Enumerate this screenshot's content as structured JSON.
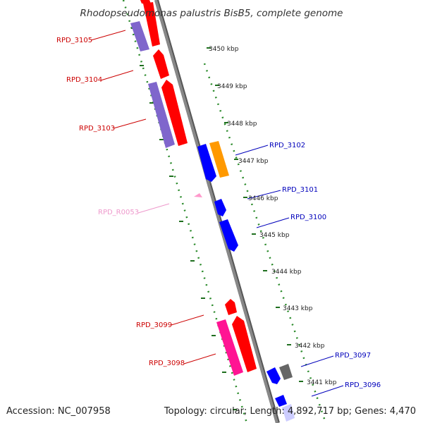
{
  "title": "Rhodopseudomonas palustris BisB5, complete genome",
  "footer": {
    "accession": "Accession: NC_007958",
    "topology": "Topology: circular; Length: 4,892,717 bp; Genes: 4,470"
  },
  "colors": {
    "backbone": "#888888",
    "tick_dots": "#2a8a2a",
    "tick_major": "#1f6f1f",
    "label_red": "#cc0000",
    "label_blue": "#0000bb",
    "label_pink": "#ee99cc",
    "gene_red": "#ff0000",
    "gene_purple": "#7f66cc",
    "gene_blue": "#0000ff",
    "gene_orange": "#ff9900",
    "gene_magenta": "#ff1493",
    "gene_gray": "#666666",
    "gene_lavender": "#ccccff",
    "rna_pink": "#ff99cc"
  },
  "scale_labels": [
    "3450 kbp",
    "3449 kbp",
    "3448 kbp",
    "3447 kbp",
    "3446 kbp",
    "3445 kbp",
    "3444 kbp",
    "3443 kbp",
    "3442 kbp",
    "3441 kbp"
  ],
  "gene_labels": [
    {
      "id": "RPD_3105",
      "color": "label_red"
    },
    {
      "id": "RPD_3104",
      "color": "label_red"
    },
    {
      "id": "RPD_3103",
      "color": "label_red"
    },
    {
      "id": "RPD_R0053",
      "color": "label_pink"
    },
    {
      "id": "RPD_3099",
      "color": "label_red"
    },
    {
      "id": "RPD_3098",
      "color": "label_red"
    },
    {
      "id": "RPD_3102",
      "color": "label_blue"
    },
    {
      "id": "RPD_3101",
      "color": "label_blue"
    },
    {
      "id": "RPD_3100",
      "color": "label_blue"
    },
    {
      "id": "RPD_3097",
      "color": "label_blue"
    },
    {
      "id": "RPD_3096",
      "color": "label_blue"
    }
  ],
  "features": [
    {
      "name": "gene-red-top",
      "color": "gene_red"
    },
    {
      "name": "gene-purple-3105",
      "color": "gene_purple"
    },
    {
      "name": "gene-red-3105",
      "color": "gene_red"
    },
    {
      "name": "gene-red-3104",
      "color": "gene_red"
    },
    {
      "name": "gene-purple-3103",
      "color": "gene_purple"
    },
    {
      "name": "gene-red-3103",
      "color": "gene_red"
    },
    {
      "name": "gene-blue-3102",
      "color": "gene_blue"
    },
    {
      "name": "gene-orange-3102",
      "color": "gene_orange"
    },
    {
      "name": "rna-r0053",
      "color": "rna_pink"
    },
    {
      "name": "gene-blue-3101",
      "color": "gene_blue"
    },
    {
      "name": "gene-blue-3100",
      "color": "gene_blue"
    },
    {
      "name": "gene-red-3099",
      "color": "gene_red"
    },
    {
      "name": "gene-magenta-3098",
      "color": "gene_magenta"
    },
    {
      "name": "gene-red-3098",
      "color": "gene_red"
    },
    {
      "name": "gene-blue-3097",
      "color": "gene_blue"
    },
    {
      "name": "gene-gray-3097",
      "color": "gene_gray"
    },
    {
      "name": "gene-blue-3096",
      "color": "gene_blue"
    },
    {
      "name": "gene-lavender-3096",
      "color": "gene_lavender"
    }
  ]
}
